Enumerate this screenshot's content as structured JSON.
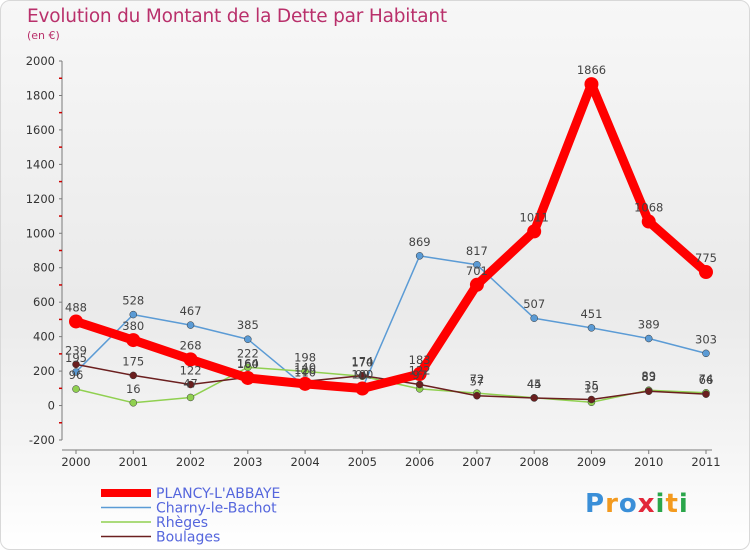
{
  "chart_data": {
    "type": "line",
    "title": "Evolution du Montant de la Dette par Habitant",
    "subtitle": "(en €)",
    "x": [
      "2000",
      "2001",
      "2002",
      "2003",
      "2004",
      "2005",
      "2006",
      "2007",
      "2008",
      "2009",
      "2010",
      "2011"
    ],
    "ylim": [
      -200,
      2000
    ],
    "yticks": [
      -200,
      0,
      200,
      400,
      600,
      800,
      1000,
      1200,
      1400,
      1600,
      1800,
      2000
    ],
    "grid": false,
    "legend_position": "bottom-left",
    "series": [
      {
        "name": "PLANCY-L'ABBAYE",
        "color": "#ff0000",
        "values": [
          488,
          380,
          268,
          160,
          126,
          99,
          183,
          701,
          1011,
          1866,
          1068,
          775
        ]
      },
      {
        "name": "Charny-le-Bachot",
        "color": "#5b9bd5",
        "values": [
          195,
          528,
          467,
          385,
          110,
          100,
          869,
          817,
          507,
          451,
          389,
          303
        ]
      },
      {
        "name": "Rhèges",
        "color": "#90d050",
        "values": [
          96,
          16,
          47,
          222,
          198,
          170,
          97,
          72,
          45,
          19,
          89,
          74
        ]
      },
      {
        "name": "Boulages",
        "color": "#6b1f1f",
        "values": [
          239,
          175,
          122,
          164,
          140,
          174,
          122,
          57,
          44,
          35,
          83,
          66
        ]
      }
    ]
  },
  "logo": {
    "text": "Proxiti",
    "letters": [
      "P",
      "r",
      "o",
      "x",
      "i",
      "t",
      "i"
    ],
    "colors": [
      "#3a8fd8",
      "#f39a1e",
      "#3a8fd8",
      "#e2283a",
      "#2aa64a",
      "#f39a1e",
      "#2aa64a"
    ]
  }
}
